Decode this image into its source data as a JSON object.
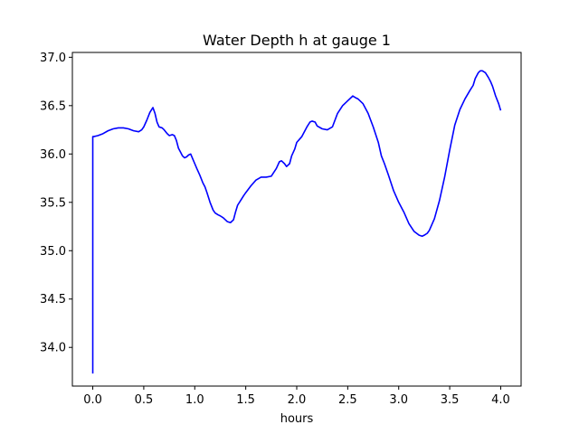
{
  "chart_data": {
    "type": "line",
    "title": "Water Depth h at gauge 1",
    "xlabel": "hours",
    "ylabel": "",
    "xlim": [
      -0.2,
      4.2
    ],
    "ylim": [
      33.6,
      37.05
    ],
    "xticks": [
      0.0,
      0.5,
      1.0,
      1.5,
      2.0,
      2.5,
      3.0,
      3.5,
      4.0
    ],
    "xtick_labels": [
      "0.0",
      "0.5",
      "1.0",
      "1.5",
      "2.0",
      "2.5",
      "3.0",
      "3.5",
      "4.0"
    ],
    "yticks": [
      34.0,
      34.5,
      35.0,
      35.5,
      36.0,
      36.5,
      37.0
    ],
    "ytick_labels": [
      "34.0",
      "34.5",
      "35.0",
      "35.5",
      "36.0",
      "36.5",
      "37.0"
    ],
    "grid": false,
    "series": [
      {
        "color": "#0000ff",
        "x": [
          0.0,
          0.0,
          0.01,
          0.05,
          0.1,
          0.15,
          0.2,
          0.25,
          0.3,
          0.35,
          0.4,
          0.45,
          0.48,
          0.5,
          0.53,
          0.56,
          0.59,
          0.61,
          0.63,
          0.65,
          0.68,
          0.7,
          0.73,
          0.75,
          0.78,
          0.8,
          0.82,
          0.84,
          0.86,
          0.88,
          0.9,
          0.92,
          0.94,
          0.96,
          0.98,
          1.0,
          1.02,
          1.05,
          1.08,
          1.1,
          1.12,
          1.15,
          1.18,
          1.2,
          1.23,
          1.25,
          1.28,
          1.3,
          1.32,
          1.35,
          1.38,
          1.4,
          1.42,
          1.45,
          1.48,
          1.5,
          1.55,
          1.6,
          1.65,
          1.7,
          1.75,
          1.8,
          1.83,
          1.85,
          1.88,
          1.9,
          1.93,
          1.95,
          1.98,
          2.0,
          2.05,
          2.1,
          2.13,
          2.15,
          2.18,
          2.2,
          2.25,
          2.3,
          2.35,
          2.4,
          2.45,
          2.5,
          2.55,
          2.58,
          2.6,
          2.65,
          2.7,
          2.75,
          2.8,
          2.83,
          2.86,
          2.9,
          2.95,
          3.0,
          3.05,
          3.1,
          3.15,
          3.2,
          3.23,
          3.25,
          3.28,
          3.3,
          3.35,
          3.4,
          3.45,
          3.5,
          3.55,
          3.6,
          3.65,
          3.7,
          3.73,
          3.75,
          3.78,
          3.8,
          3.82,
          3.85,
          3.88,
          3.9,
          3.92,
          3.95,
          3.98,
          4.0
        ],
        "y": [
          33.73,
          36.18,
          36.18,
          36.19,
          36.21,
          36.24,
          36.26,
          36.27,
          36.27,
          36.26,
          36.24,
          36.23,
          36.25,
          36.28,
          36.35,
          36.43,
          36.48,
          36.42,
          36.33,
          36.28,
          36.27,
          36.25,
          36.21,
          36.19,
          36.2,
          36.19,
          36.14,
          36.06,
          36.02,
          35.98,
          35.96,
          35.97,
          35.99,
          36.0,
          35.95,
          35.9,
          35.85,
          35.78,
          35.7,
          35.66,
          35.6,
          35.5,
          35.42,
          35.39,
          35.37,
          35.36,
          35.34,
          35.32,
          35.3,
          35.29,
          35.32,
          35.4,
          35.47,
          35.52,
          35.57,
          35.6,
          35.67,
          35.73,
          35.76,
          35.76,
          35.77,
          35.85,
          35.92,
          35.93,
          35.9,
          35.87,
          35.9,
          35.98,
          36.05,
          36.12,
          36.18,
          36.28,
          36.33,
          36.34,
          36.33,
          36.29,
          36.26,
          36.25,
          36.28,
          36.42,
          36.5,
          36.55,
          36.6,
          36.58,
          36.57,
          36.52,
          36.42,
          36.28,
          36.12,
          35.98,
          35.9,
          35.78,
          35.62,
          35.5,
          35.4,
          35.28,
          35.2,
          35.16,
          35.15,
          35.16,
          35.18,
          35.21,
          35.33,
          35.52,
          35.76,
          36.04,
          36.3,
          36.46,
          36.57,
          36.66,
          36.71,
          36.78,
          36.84,
          36.86,
          36.86,
          36.84,
          36.79,
          36.75,
          36.7,
          36.6,
          36.52,
          36.45
        ]
      }
    ]
  }
}
